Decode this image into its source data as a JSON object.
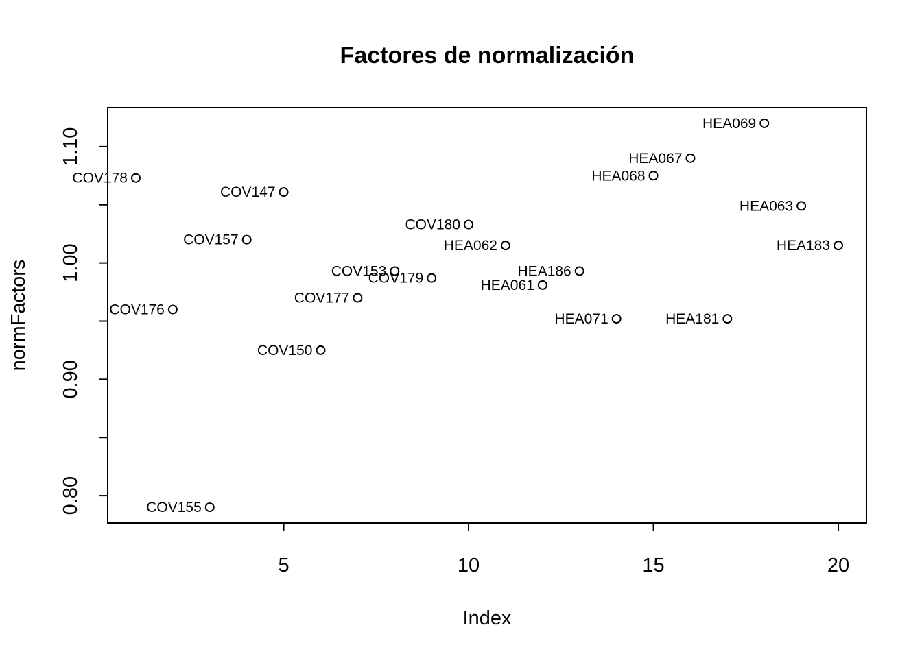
{
  "chart_data": {
    "type": "scatter",
    "title": "Factores de normalización",
    "xlabel": "Index",
    "ylabel": "normFactors",
    "xlim": [
      0.24,
      20.76
    ],
    "ylim": [
      0.7765,
      1.1335
    ],
    "x_ticks": [
      5,
      10,
      15,
      20
    ],
    "x_tick_labels": [
      "5",
      "10",
      "15",
      "20"
    ],
    "y_ticks": [
      0.8,
      0.85,
      0.9,
      0.95,
      1.0,
      1.05,
      1.1
    ],
    "y_tick_labels": [
      "0.80",
      "",
      "0.90",
      "",
      "1.00",
      "",
      "1.10"
    ],
    "grid": false,
    "points": [
      {
        "x": 1,
        "y": 1.073,
        "label": "COV178"
      },
      {
        "x": 2,
        "y": 0.96,
        "label": "COV176"
      },
      {
        "x": 3,
        "y": 0.79,
        "label": "COV155"
      },
      {
        "x": 4,
        "y": 1.02,
        "label": "COV157"
      },
      {
        "x": 5,
        "y": 1.061,
        "label": "COV147"
      },
      {
        "x": 6,
        "y": 0.925,
        "label": "COV150"
      },
      {
        "x": 7,
        "y": 0.97,
        "label": "COV177"
      },
      {
        "x": 8,
        "y": 0.993,
        "label": "COV153"
      },
      {
        "x": 9,
        "y": 0.987,
        "label": "COV179"
      },
      {
        "x": 10,
        "y": 1.033,
        "label": "COV180"
      },
      {
        "x": 11,
        "y": 1.015,
        "label": "HEA062"
      },
      {
        "x": 12,
        "y": 0.981,
        "label": "HEA061"
      },
      {
        "x": 13,
        "y": 0.993,
        "label": "HEA186"
      },
      {
        "x": 14,
        "y": 0.952,
        "label": "HEA071"
      },
      {
        "x": 15,
        "y": 1.075,
        "label": "HEA068"
      },
      {
        "x": 16,
        "y": 1.09,
        "label": "HEA067"
      },
      {
        "x": 17,
        "y": 0.952,
        "label": "HEA181"
      },
      {
        "x": 18,
        "y": 1.12,
        "label": "HEA069"
      },
      {
        "x": 19,
        "y": 1.049,
        "label": "HEA063"
      },
      {
        "x": 20,
        "y": 1.015,
        "label": "HEA183"
      }
    ]
  }
}
